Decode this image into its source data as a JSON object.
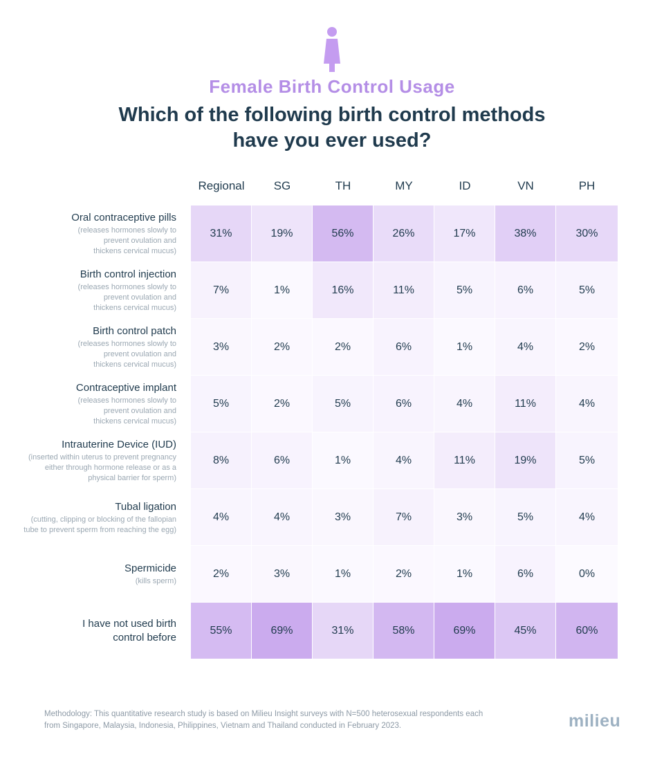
{
  "header": {
    "subtitle": "Female Birth Control Usage",
    "title": "Which of the following birth control methods have you ever used?"
  },
  "icon": "woman-icon",
  "colors": {
    "accent": "#b48ee6",
    "text": "#1f3a4d",
    "muted": "#9aa7b2"
  },
  "chart_data": {
    "type": "table",
    "columns": [
      "Regional",
      "SG",
      "TH",
      "MY",
      "ID",
      "VN",
      "PH"
    ],
    "rows": [
      {
        "label": "Oral contraceptive pills",
        "description": "(releases hormones slowly to prevent ovulation and thickens cervical mucus)",
        "values": [
          31,
          19,
          56,
          26,
          17,
          38,
          30
        ]
      },
      {
        "label": "Birth control injection",
        "description": "(releases hormones slowly to prevent ovulation and thickens cervical mucus)",
        "values": [
          7,
          1,
          16,
          11,
          5,
          6,
          5
        ]
      },
      {
        "label": "Birth control patch",
        "description": "(releases hormones slowly to prevent ovulation and thickens cervical mucus)",
        "values": [
          3,
          2,
          2,
          6,
          1,
          4,
          2
        ]
      },
      {
        "label": "Contraceptive implant",
        "description": "(releases hormones slowly to prevent ovulation and thickens cervical mucus)",
        "values": [
          5,
          2,
          5,
          6,
          4,
          11,
          4
        ]
      },
      {
        "label": "Intrauterine Device (IUD)",
        "description": "(inserted within uterus to prevent pregnancy either through hormone release or as a physical barrier for sperm)",
        "values": [
          8,
          6,
          1,
          4,
          11,
          19,
          5
        ]
      },
      {
        "label": "Tubal ligation",
        "description": "(cutting, clipping or blocking of the fallopian tube to prevent sperm from reaching the egg)",
        "values": [
          4,
          4,
          3,
          7,
          3,
          5,
          4
        ]
      },
      {
        "label": "Spermicide",
        "description": "(kills sperm)",
        "values": [
          2,
          3,
          1,
          2,
          1,
          6,
          0
        ]
      },
      {
        "label": "I have not used birth control before",
        "description": "",
        "values": [
          55,
          69,
          31,
          58,
          69,
          45,
          60
        ]
      }
    ],
    "unit": "%"
  },
  "footer": {
    "methodology": "Methodology: This quantitative research study is based on Milieu Insight surveys with N=500 heterosexual respondents each from Singapore, Malaysia, Indonesia, Philippines, Vietnam and Thailand conducted in February 2023.",
    "logo": "milieu"
  }
}
